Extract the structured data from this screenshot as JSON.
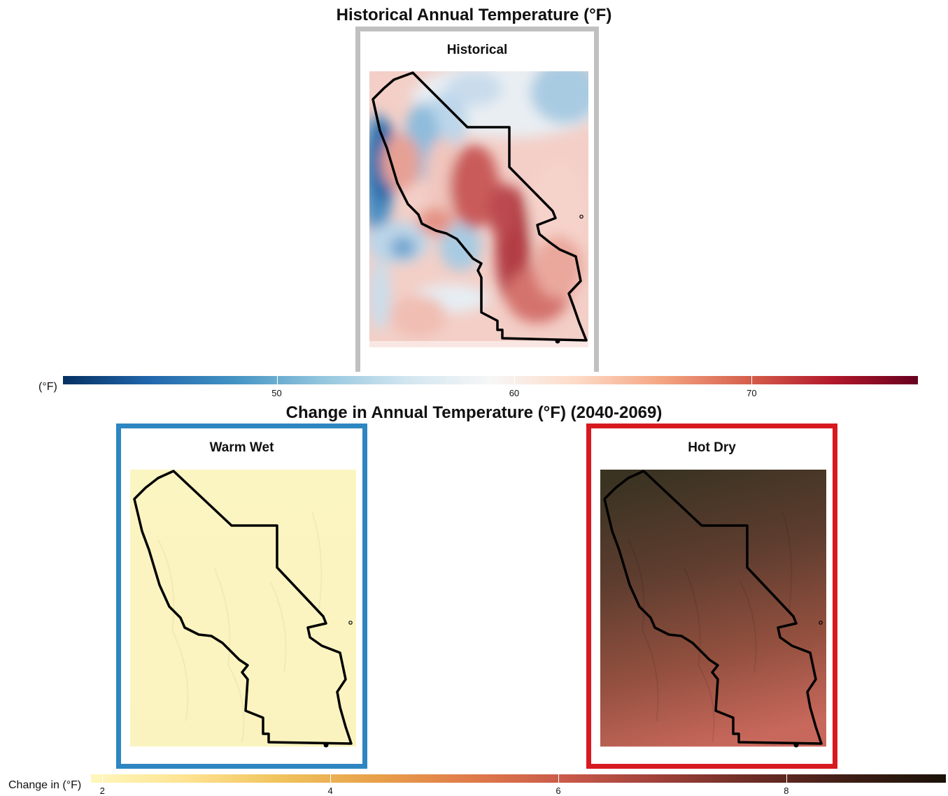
{
  "figure": {
    "historical_title": "Historical Annual Temperature (°F)",
    "change_title": "Change in Annual Temperature (°F) (2040-2069)"
  },
  "panels": {
    "historical": {
      "label": "Historical",
      "frame_color": "#c0c0c0"
    },
    "warm_wet": {
      "label": "Warm Wet",
      "frame_color": "#2e86c1"
    },
    "hot_dry": {
      "label": "Hot Dry",
      "frame_color": "#d71920"
    }
  },
  "colorbars": {
    "historical": {
      "title": "(°F)",
      "min": 41,
      "max": 77,
      "ticks": [
        50,
        60,
        70
      ],
      "tick_labels": [
        "50",
        "60",
        "70"
      ],
      "palette": [
        "#053061",
        "#2166ac",
        "#4393c3",
        "#92c5de",
        "#d1e5f0",
        "#f7f7f7",
        "#fddbc7",
        "#f4a582",
        "#d6604d",
        "#b2182b",
        "#67001f"
      ]
    },
    "change": {
      "title": "Change in (°F)",
      "min": 1.9,
      "max": 9.4,
      "ticks": [
        2,
        4,
        6,
        8
      ],
      "tick_labels": [
        "2",
        "4",
        "6",
        "8"
      ],
      "palette": [
        "#fff7bc",
        "#fee391",
        "#f0c35c",
        "#e8a04a",
        "#e07b4a",
        "#c9594a",
        "#9e4039",
        "#6b2c25",
        "#3d1d14",
        "#1a1208"
      ]
    }
  },
  "chart_data": {
    "type": "heatmap",
    "maps": [
      {
        "name": "Historical",
        "variable": "Annual Temperature (°F)",
        "range_approx": [
          45,
          75
        ]
      },
      {
        "name": "Warm Wet",
        "variable": "Change in Annual Temperature (°F)",
        "range_approx": [
          2,
          2.5
        ]
      },
      {
        "name": "Hot Dry",
        "variable": "Change in Annual Temperature (°F)",
        "range_approx": [
          6.5,
          9
        ]
      }
    ]
  }
}
